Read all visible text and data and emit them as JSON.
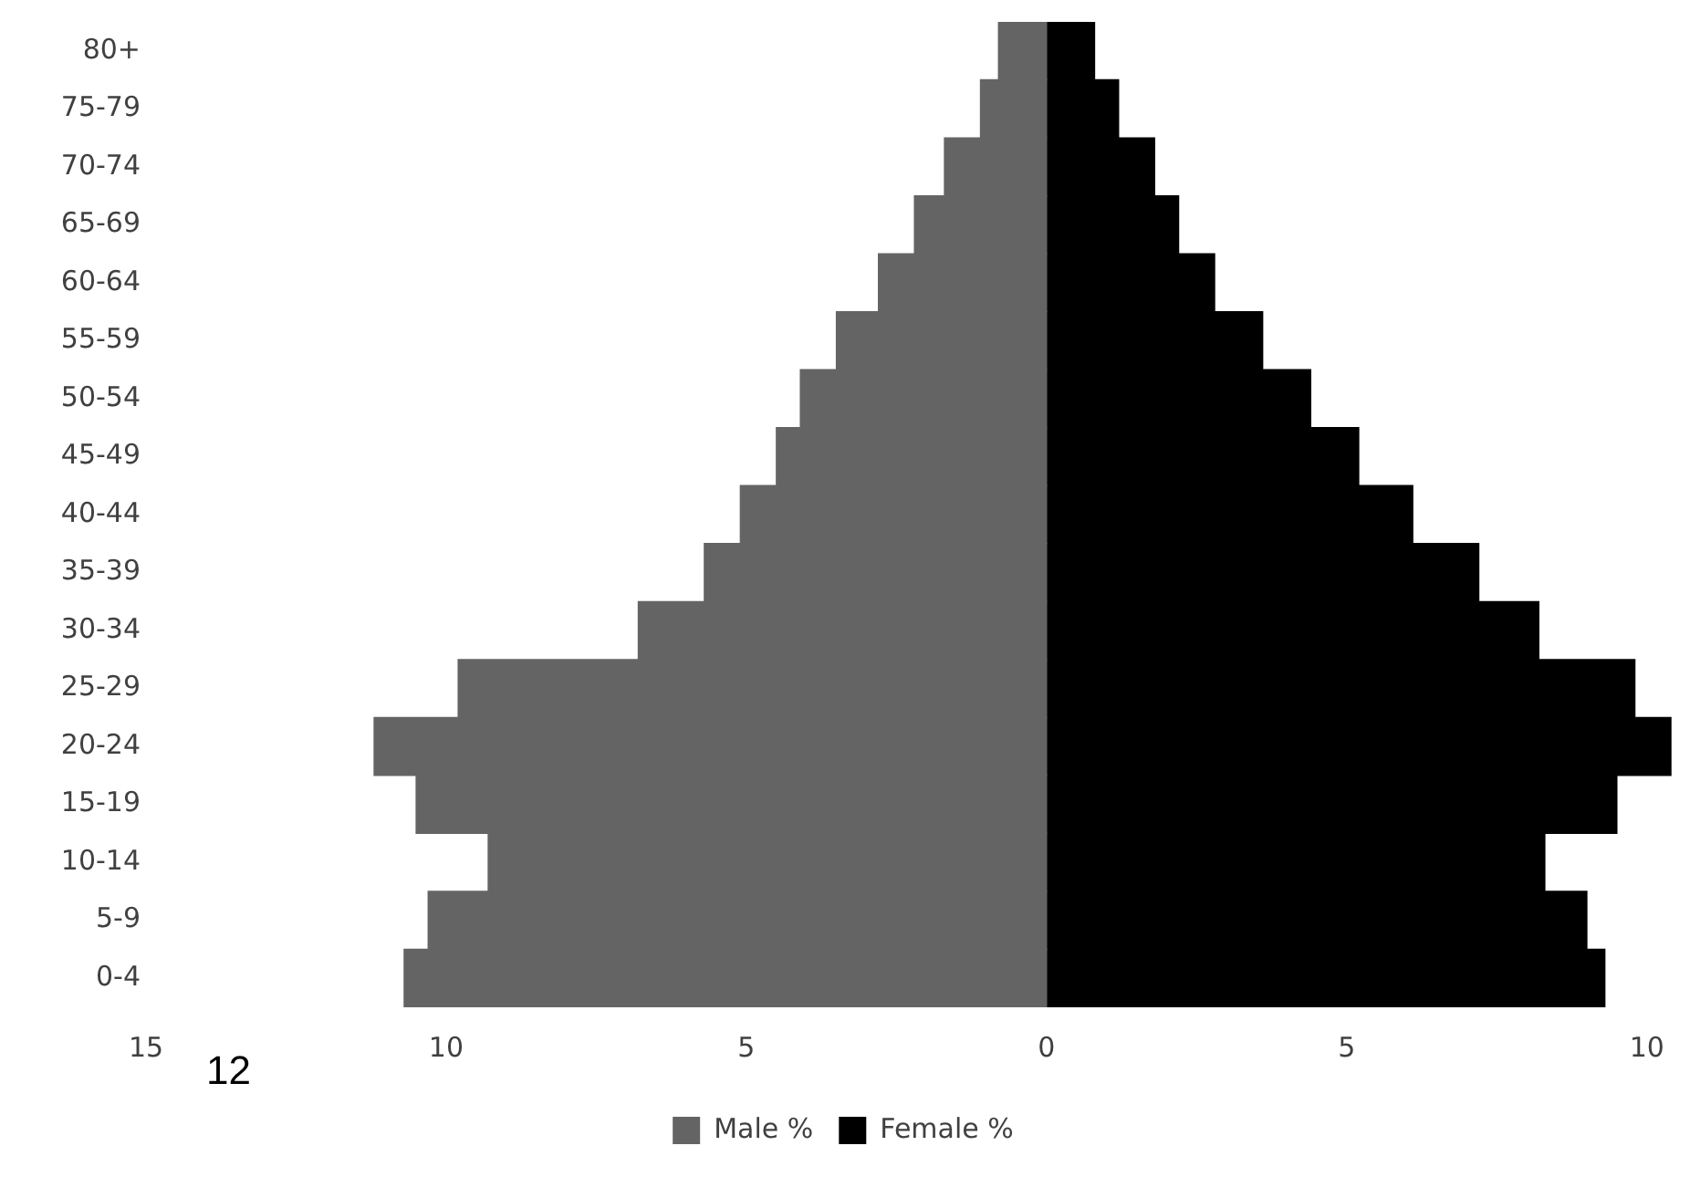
{
  "chart_data": {
    "type": "bar",
    "orientation": "horizontal",
    "stacked": true,
    "categories": [
      "80+",
      "75-79",
      "70-74",
      "65-69",
      "60-64",
      "55-59",
      "50-54",
      "45-49",
      "40-44",
      "35-39",
      "30-34",
      "25-29",
      "20-24",
      "15-19",
      "10-14",
      "5-9",
      "0-4"
    ],
    "series": [
      {
        "name": "Male %",
        "color": "#646464",
        "values": [
          -0.8,
          -1.1,
          -1.7,
          -2.2,
          -2.8,
          -3.5,
          -4.1,
          -4.5,
          -5.1,
          -5.7,
          -6.8,
          -9.8,
          -11.2,
          -10.5,
          -9.3,
          -10.3,
          -10.7
        ]
      },
      {
        "name": "Female %",
        "color": "#000000",
        "values": [
          0.8,
          1.2,
          1.8,
          2.2,
          2.8,
          3.6,
          4.4,
          5.2,
          6.1,
          7.2,
          8.2,
          9.8,
          10.4,
          9.5,
          8.3,
          9.0,
          9.3
        ]
      }
    ],
    "xlim": [
      -15,
      10.5
    ],
    "xticks": [
      {
        "value": -15,
        "label": "15"
      },
      {
        "value": -10,
        "label": "10"
      },
      {
        "value": -5,
        "label": "5"
      },
      0,
      5,
      10
    ],
    "annotations": [
      "12"
    ],
    "grid": false,
    "legend": "bottom"
  }
}
